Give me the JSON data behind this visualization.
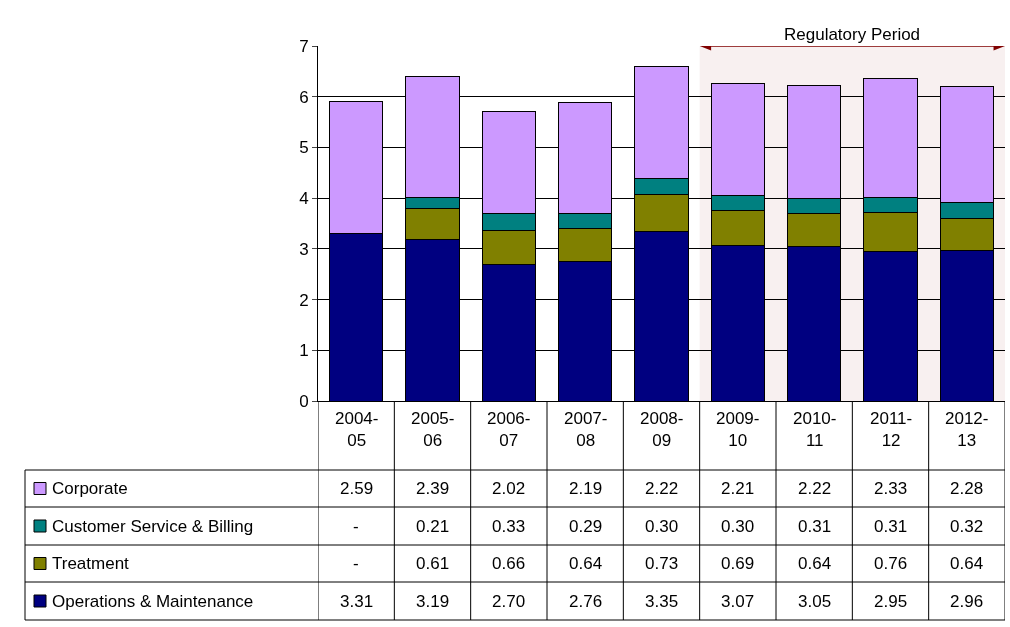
{
  "chart_data": {
    "type": "bar",
    "stacked": true,
    "categories": [
      "2004-05",
      "2005-06",
      "2006-07",
      "2007-08",
      "2008-09",
      "2009-10",
      "2010-11",
      "2011-12",
      "2012-13"
    ],
    "series": [
      {
        "name": "Operations & Maintenance",
        "color": "#000080",
        "values": [
          3.31,
          3.19,
          2.7,
          2.76,
          3.35,
          3.07,
          3.05,
          2.95,
          2.96
        ],
        "value_labels": [
          "3.31",
          "3.19",
          "2.70",
          "2.76",
          "3.35",
          "3.07",
          "3.05",
          "2.95",
          "2.96"
        ]
      },
      {
        "name": "Treatment",
        "color": "#808000",
        "values": [
          null,
          0.61,
          0.66,
          0.64,
          0.73,
          0.69,
          0.64,
          0.76,
          0.64
        ],
        "value_labels": [
          "-",
          "0.61",
          "0.66",
          "0.64",
          "0.73",
          "0.69",
          "0.64",
          "0.76",
          "0.64"
        ]
      },
      {
        "name": "Customer Service & Billing",
        "color": "#008080",
        "values": [
          null,
          0.21,
          0.33,
          0.29,
          0.3,
          0.3,
          0.31,
          0.31,
          0.32
        ],
        "value_labels": [
          "-",
          "0.21",
          "0.33",
          "0.29",
          "0.30",
          "0.30",
          "0.31",
          "0.31",
          "0.32"
        ]
      },
      {
        "name": "Corporate",
        "color": "#cc99ff",
        "values": [
          2.59,
          2.39,
          2.02,
          2.19,
          2.22,
          2.21,
          2.22,
          2.33,
          2.28
        ],
        "value_labels": [
          "2.59",
          "2.39",
          "2.02",
          "2.19",
          "2.22",
          "2.21",
          "2.22",
          "2.33",
          "2.28"
        ]
      }
    ],
    "ylim": [
      0,
      7
    ],
    "yticks": [
      0,
      1,
      2,
      3,
      4,
      5,
      6,
      7
    ],
    "grid": "y",
    "legend": "bottom",
    "bands": [
      {
        "axis": "x",
        "from": "2009-10",
        "to": "2012-13",
        "label": "Regulatory Period",
        "color": "#800000"
      }
    ]
  }
}
